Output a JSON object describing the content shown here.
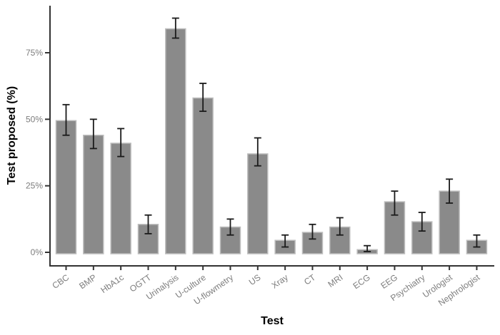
{
  "chart_data": {
    "type": "bar",
    "title": "",
    "xlabel": "Test",
    "ylabel": "Test proposed (%)",
    "categories": [
      "CBC",
      "BMP",
      "HbA1c",
      "OGTT",
      "Urinalysis",
      "U-culture",
      "U-flowmetry",
      "US",
      "Xray",
      "CT",
      "MRI",
      "ECG",
      "EEG",
      "Psychiatry",
      "Urologist",
      "Nephrologist"
    ],
    "values": [
      49.5,
      44,
      41,
      10.5,
      84,
      58,
      9.5,
      37,
      4.5,
      7.5,
      9.5,
      1,
      19,
      11.5,
      23,
      4.5
    ],
    "error_low": [
      44,
      39,
      36,
      7,
      80.5,
      53,
      6.5,
      32.5,
      2,
      5,
      6.5,
      0.3,
      14,
      8,
      18.5,
      2
    ],
    "error_high": [
      55.5,
      50,
      46.5,
      14,
      88,
      63.5,
      12.5,
      43,
      6.5,
      10.5,
      13,
      2.5,
      23,
      15,
      27.5,
      6.5
    ],
    "y_ticks": [
      {
        "value": 0,
        "label": "0%"
      },
      {
        "value": 25,
        "label": "25%"
      },
      {
        "value": 50,
        "label": "50%"
      },
      {
        "value": 75,
        "label": "75%"
      }
    ],
    "ylim": [
      0,
      93
    ],
    "grid": false,
    "legend_position": "none",
    "x_tick_angle_deg": -35,
    "colors": {
      "bar_fill": "#8a8a8a",
      "bar_border": "#bdbdbd",
      "error_bar": "#1a1a1a",
      "axis_line": "#333333",
      "tick_label": "#7d7d7d",
      "axis_title": "#000000"
    }
  }
}
